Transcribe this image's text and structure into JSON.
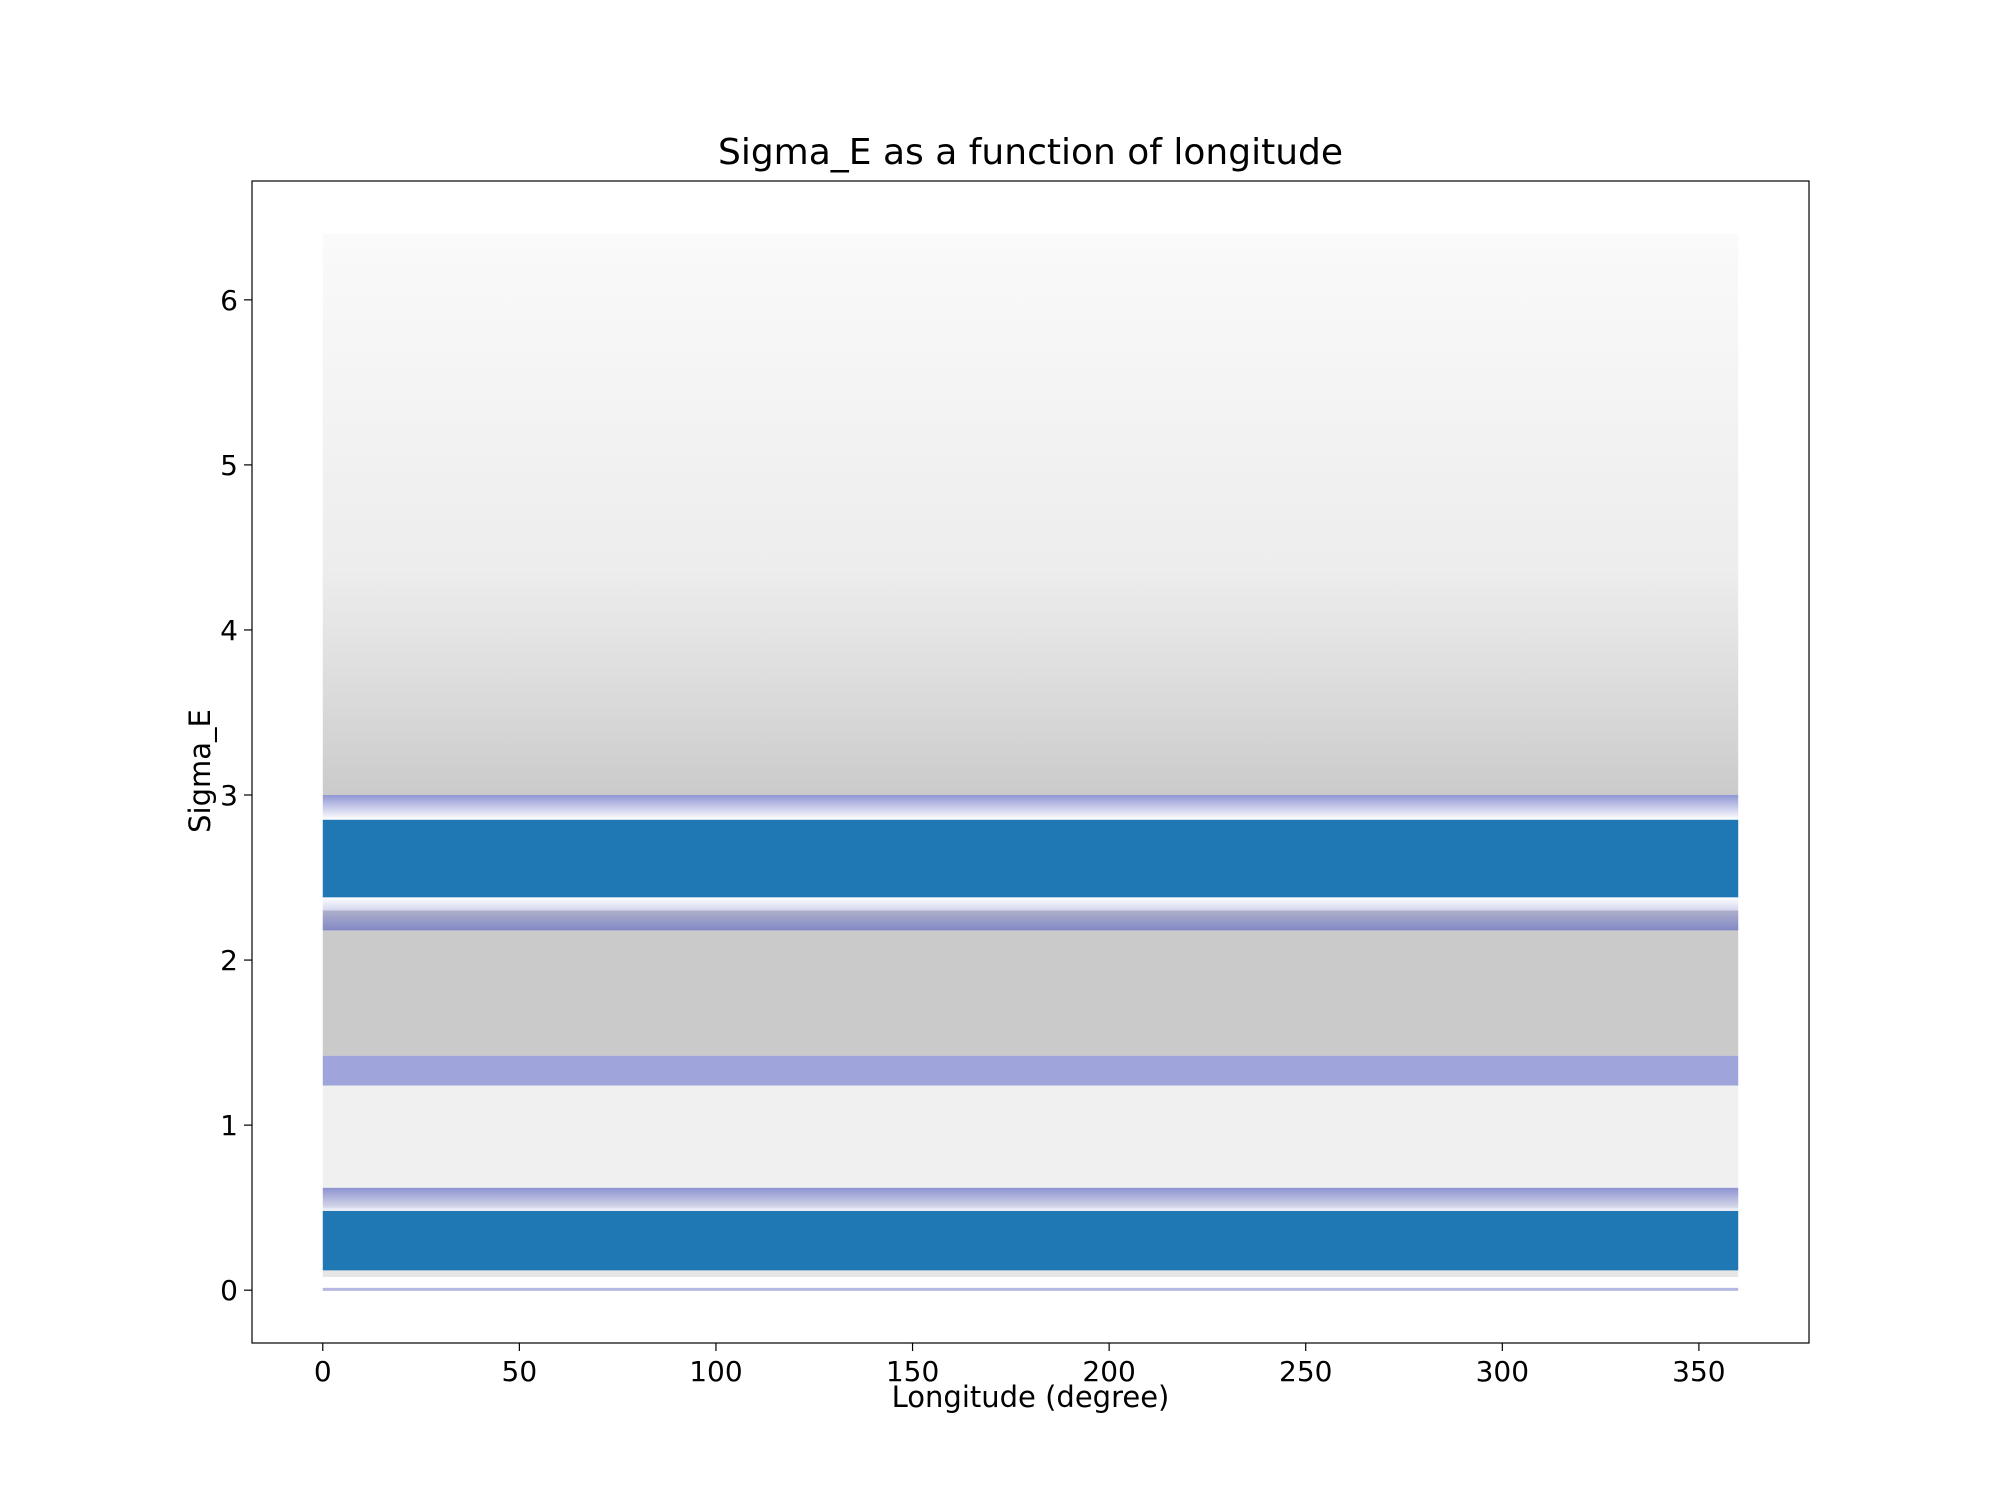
{
  "chart_data": {
    "type": "scatter",
    "title": "Sigma_E as a function of longitude",
    "xlabel": "Longitude (degree)",
    "ylabel": "Sigma_E",
    "xlim": [
      -18,
      378
    ],
    "ylim": [
      -0.32,
      6.72
    ],
    "xticks": [
      0,
      50,
      100,
      150,
      200,
      250,
      300,
      350
    ],
    "yticks": [
      0,
      1,
      2,
      3,
      4,
      5,
      6
    ],
    "grid": false,
    "legend": "none",
    "x_range": [
      0,
      360
    ],
    "density_bands": [
      {
        "y_range": [
          2.3,
          2.9
        ],
        "x_range": [
          0,
          360
        ],
        "level": "densest"
      },
      {
        "y_range": [
          1.24,
          1.42
        ],
        "x_range": [
          0,
          360
        ],
        "level": "dense"
      },
      {
        "y_range": [
          0.12,
          0.5
        ],
        "x_range": [
          0,
          360
        ],
        "level": "densest"
      },
      {
        "y_range": [
          0.0,
          0.01
        ],
        "x_range": [
          0,
          360
        ],
        "level": "sparse"
      },
      {
        "y_range": [
          1.4,
          3.6
        ],
        "x_range": [
          0,
          360
        ],
        "level": "moderate"
      },
      {
        "y_range": [
          3.6,
          6.4
        ],
        "x_range": [
          0,
          360
        ],
        "level": "sparse"
      }
    ],
    "colors": {
      "dense": "#1f77b4",
      "medium": "#6b73c6",
      "sparse": "#808080",
      "background": "#ffffff"
    }
  }
}
